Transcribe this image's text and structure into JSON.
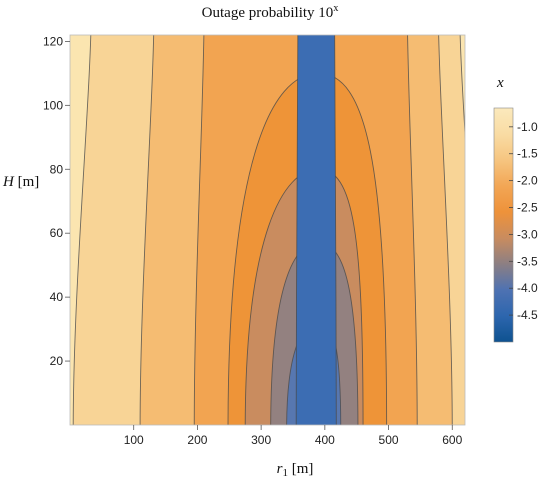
{
  "chart_data": {
    "type": "contour",
    "title": "Outage probability  10",
    "title_superscript": "x",
    "xlabel_main": "r",
    "xlabel_sub": "1",
    "xlabel_unit": " [m]",
    "ylabel_main": "H",
    "ylabel_unit": " [m]",
    "xlim": [
      0,
      620
    ],
    "ylim": [
      0,
      122
    ],
    "x_ticks": [
      100,
      200,
      300,
      400,
      500,
      600
    ],
    "y_ticks": [
      20,
      40,
      60,
      80,
      100,
      120
    ],
    "legend": {
      "title": "x",
      "placement": "right",
      "ticks": [
        "-1.0",
        "-1.5",
        "-2.0",
        "-2.5",
        "-3.0",
        "-3.5",
        "-4.0",
        "-4.5"
      ],
      "tick_values": [
        -1.0,
        -1.5,
        -2.0,
        -2.5,
        -3.0,
        -3.5,
        -4.0,
        -4.5
      ],
      "min": -5.0,
      "max": -0.65
    },
    "center_r1": 390,
    "contour_levels": [
      -1.0,
      -1.5,
      -2.0,
      -2.5,
      -3.0,
      -3.5,
      -4.0,
      -4.5
    ],
    "contour_half_widths_at_ground": [
      {
        "level": -1.0,
        "left_r1": 5,
        "right_r1": 640
      },
      {
        "level": -1.5,
        "left_r1": 110,
        "right_r1": 600
      },
      {
        "level": -2.0,
        "left_r1": 195,
        "right_r1": 545
      },
      {
        "level": -2.5,
        "left_r1": 248,
        "right_r1": 497
      },
      {
        "level": -3.0,
        "left_r1": 275,
        "right_r1": 460
      },
      {
        "level": -3.5,
        "left_r1": 315,
        "right_r1": 452
      },
      {
        "level": -4.0,
        "left_r1": 340,
        "right_r1": 425
      },
      {
        "level": -4.5,
        "left_r1": 355,
        "right_r1": 418
      }
    ],
    "contour_apex_heights": [
      {
        "level": -2.5,
        "H": 110
      },
      {
        "level": -3.0,
        "H": 80
      },
      {
        "level": -3.5,
        "H": 57
      },
      {
        "level": -4.0,
        "H": 32
      }
    ],
    "band_colors": [
      "#FBE5B0",
      "#F8D496",
      "#F5BC72",
      "#F2A451",
      "#EE9438",
      "#C98C5F",
      "#938180",
      "#5777B0",
      "#3C6DB3",
      "#115594"
    ]
  }
}
